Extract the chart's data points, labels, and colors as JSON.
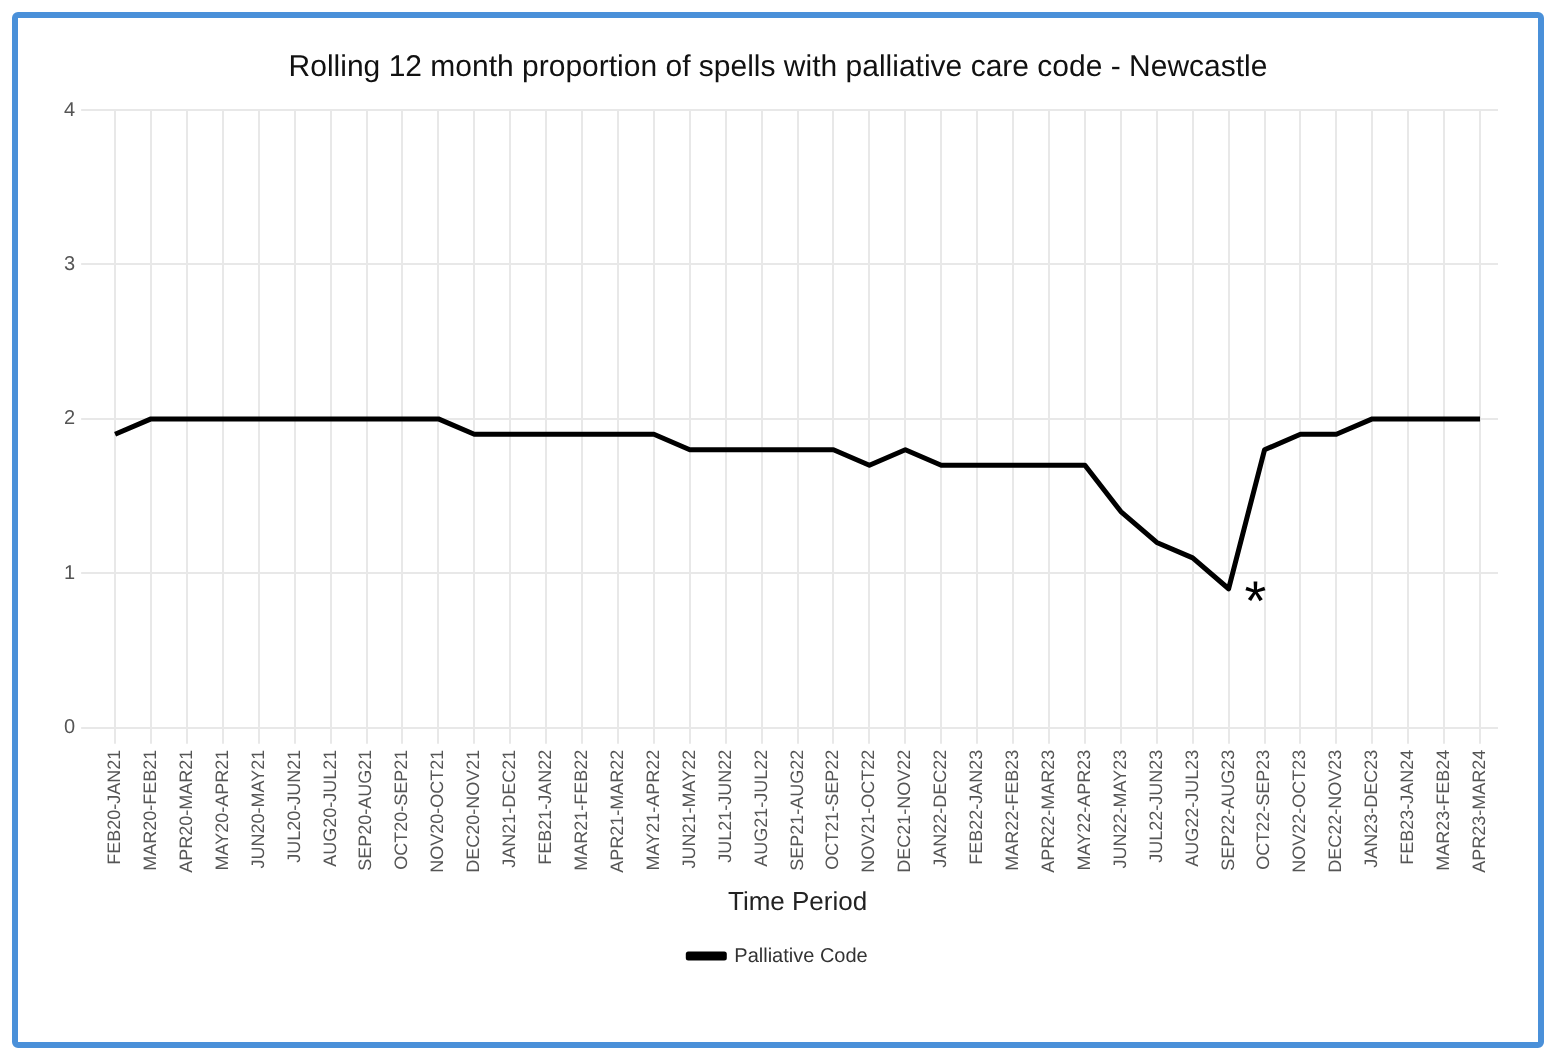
{
  "chart_data": {
    "type": "line",
    "title": "Rolling 12 month proportion of spells with palliative care code - Newcastle",
    "xlabel": "Time Period",
    "categories": [
      "FEB20-JAN21",
      "MAR20-FEB21",
      "APR20-MAR21",
      "MAY20-APR21",
      "JUN20-MAY21",
      "JUL20-JUN21",
      "AUG20-JUL21",
      "SEP20-AUG21",
      "OCT20-SEP21",
      "NOV20-OCT21",
      "DEC20-NOV21",
      "JAN21-DEC21",
      "FEB21-JAN22",
      "MAR21-FEB22",
      "APR21-MAR22",
      "MAY21-APR22",
      "JUN21-MAY22",
      "JUL21-JUN22",
      "AUG21-JUL22",
      "SEP21-AUG22",
      "OCT21-SEP22",
      "NOV21-OCT22",
      "DEC21-NOV22",
      "JAN22-DEC22",
      "FEB22-JAN23",
      "MAR22-FEB23",
      "APR22-MAR23",
      "MAY22-APR23",
      "JUN22-MAY23",
      "JUL22-JUN23",
      "AUG22-JUL23",
      "SEP22-AUG23",
      "OCT22-SEP23",
      "NOV22-OCT23",
      "DEC22-NOV23",
      "JAN23-DEC23",
      "FEB23-JAN24",
      "MAR23-FEB24",
      "APR23-MAR24"
    ],
    "series": [
      {
        "name": "Palliative Code",
        "color": "#000000",
        "values": [
          1.9,
          2.0,
          2.0,
          2.0,
          2.0,
          2.0,
          2.0,
          2.0,
          2.0,
          2.0,
          1.9,
          1.9,
          1.9,
          1.9,
          1.9,
          1.9,
          1.8,
          1.8,
          1.8,
          1.8,
          1.8,
          1.7,
          1.8,
          1.7,
          1.7,
          1.7,
          1.7,
          1.7,
          1.4,
          1.2,
          1.1,
          0.9,
          1.8,
          1.9,
          1.9,
          2.0,
          2.0,
          2.0,
          2.0
        ]
      }
    ],
    "ylim": [
      0,
      4
    ],
    "yticks": [
      0,
      1,
      2,
      3,
      4
    ],
    "grid": true,
    "legend": "bottom",
    "marker": "none",
    "line_style": "solid",
    "annotations": [
      {
        "text": "*",
        "x": "SEP22-AUG23",
        "y": 0.9
      }
    ]
  }
}
